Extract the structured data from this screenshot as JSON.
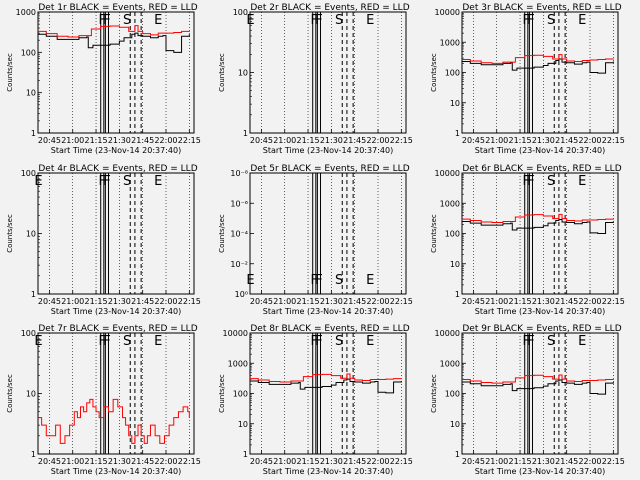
{
  "figure": {
    "background": "#f2f2f2",
    "events_color": "#000000",
    "lld_color": "#ff0000",
    "x_tick_labels": [
      "20:45",
      "21:00",
      "21:15",
      "21:30",
      "21:45",
      "22:00",
      "22:15"
    ],
    "x_label": "Start Time (23-Nov-14 20:37:40)",
    "y_label": "Counts/sec"
  },
  "chart_data": [
    {
      "type": "line",
      "title": "Det 1r BLACK = Events, RED = LLD",
      "yscale": "log",
      "yticks": [
        "1",
        "10",
        "100",
        "1000"
      ],
      "series": [
        {
          "name": "Events",
          "color": "#000000",
          "x": [
            "20:37",
            "20:43",
            "20:50",
            "20:57",
            "21:04",
            "21:09",
            "21:10",
            "21:12",
            "21:13",
            "21:24",
            "21:27",
            "21:30",
            "21:33",
            "21:36",
            "21:38",
            "21:40",
            "21:42",
            "21:45",
            "21:50",
            "21:55",
            "21:58",
            "22:00",
            "22:05",
            "22:10",
            "22:15"
          ],
          "y": [
            280,
            250,
            210,
            210,
            230,
            240,
            130,
            130,
            150,
            160,
            160,
            190,
            230,
            230,
            280,
            300,
            260,
            250,
            230,
            250,
            260,
            110,
            100,
            250,
            280
          ]
        },
        {
          "name": "LLD",
          "color": "#ff0000",
          "x": [
            "20:37",
            "20:43",
            "20:50",
            "20:57",
            "21:04",
            "21:12",
            "21:18",
            "21:24",
            "21:30",
            "21:36",
            "21:40",
            "21:42",
            "21:45",
            "21:50",
            "21:55",
            "22:00",
            "22:05",
            "22:10",
            "22:15"
          ],
          "y": [
            330,
            290,
            250,
            240,
            260,
            380,
            440,
            450,
            420,
            330,
            460,
            330,
            290,
            270,
            300,
            300,
            310,
            330,
            340
          ]
        }
      ],
      "annotations": [
        {
          "text": "F",
          "x": "21:19"
        },
        {
          "text": "F",
          "x": "21:22"
        },
        {
          "text": "S",
          "x": "21:35"
        },
        {
          "text": "E",
          "x": "21:55"
        }
      ]
    },
    {
      "type": "line",
      "title": "Det 2r BLACK = Events, RED = LLD",
      "yscale": "log",
      "yticks": [
        "1",
        "10",
        "100"
      ],
      "series": [],
      "annotations": [
        {
          "text": "E",
          "x": "20:38"
        },
        {
          "text": "F",
          "x": "21:19"
        },
        {
          "text": "F",
          "x": "21:22"
        },
        {
          "text": "S",
          "x": "21:35"
        },
        {
          "text": "E",
          "x": "21:55"
        }
      ]
    },
    {
      "type": "line",
      "title": "Det 3r BLACK = Events, RED = LLD",
      "yscale": "log",
      "yticks": [
        "1",
        "10",
        "100",
        "1000",
        "10000"
      ],
      "series": [
        {
          "name": "Events",
          "color": "#000000",
          "x": [
            "20:37",
            "20:43",
            "20:50",
            "20:57",
            "21:04",
            "21:09",
            "21:10",
            "21:12",
            "21:13",
            "21:24",
            "21:27",
            "21:30",
            "21:33",
            "21:36",
            "21:38",
            "21:40",
            "21:42",
            "21:45",
            "21:50",
            "21:55",
            "21:58",
            "22:00",
            "22:05",
            "22:10",
            "22:15"
          ],
          "y": [
            230,
            200,
            180,
            180,
            200,
            210,
            120,
            120,
            140,
            150,
            150,
            170,
            200,
            200,
            250,
            280,
            220,
            210,
            190,
            210,
            220,
            100,
            95,
            210,
            230
          ]
        },
        {
          "name": "LLD",
          "color": "#ff0000",
          "x": [
            "20:37",
            "20:43",
            "20:50",
            "20:57",
            "21:04",
            "21:12",
            "21:18",
            "21:24",
            "21:30",
            "21:36",
            "21:40",
            "21:42",
            "21:45",
            "21:50",
            "21:55",
            "22:00",
            "22:05",
            "22:10",
            "22:15"
          ],
          "y": [
            270,
            240,
            210,
            200,
            220,
            310,
            360,
            370,
            340,
            280,
            390,
            280,
            240,
            230,
            250,
            260,
            270,
            280,
            290
          ]
        }
      ],
      "annotations": [
        {
          "text": "F",
          "x": "21:19"
        },
        {
          "text": "F",
          "x": "21:22"
        },
        {
          "text": "S",
          "x": "21:35"
        },
        {
          "text": "E",
          "x": "21:55"
        }
      ]
    },
    {
      "type": "line",
      "title": "Det 4r BLACK = Events, RED = LLD",
      "yscale": "log",
      "yticks": [
        "1",
        "10",
        "100"
      ],
      "series": [],
      "annotations": [
        {
          "text": "E",
          "x": "20:38"
        },
        {
          "text": "F",
          "x": "21:19"
        },
        {
          "text": "F",
          "x": "21:22"
        },
        {
          "text": "S",
          "x": "21:35"
        },
        {
          "text": "E",
          "x": "21:55"
        }
      ]
    },
    {
      "type": "line",
      "title": "Det 5r BLACK = Events, RED = LLD",
      "yscale": "log",
      "yticks": [
        "10⁰",
        "10⁻²",
        "10⁻⁴",
        "10⁻⁶",
        "10⁻⁸"
      ],
      "series": [],
      "annotations": [
        {
          "text": "E",
          "x": "20:38"
        },
        {
          "text": "F",
          "x": "21:19"
        },
        {
          "text": "F",
          "x": "21:22"
        },
        {
          "text": "S",
          "x": "21:35"
        },
        {
          "text": "E",
          "x": "21:55"
        }
      ]
    },
    {
      "type": "line",
      "title": "Det 6r BLACK = Events, RED = LLD",
      "yscale": "log",
      "yticks": [
        "1",
        "10",
        "100",
        "1000",
        "10000"
      ],
      "series": [
        {
          "name": "Events",
          "color": "#000000",
          "x": [
            "20:37",
            "20:43",
            "20:50",
            "20:57",
            "21:04",
            "21:09",
            "21:10",
            "21:12",
            "21:13",
            "21:24",
            "21:27",
            "21:30",
            "21:33",
            "21:36",
            "21:38",
            "21:40",
            "21:42",
            "21:45",
            "21:50",
            "21:55",
            "21:58",
            "22:00",
            "22:05",
            "22:10",
            "22:15"
          ],
          "y": [
            250,
            220,
            190,
            190,
            210,
            220,
            130,
            130,
            150,
            160,
            160,
            180,
            220,
            220,
            270,
            290,
            240,
            230,
            210,
            230,
            240,
            105,
            100,
            230,
            250
          ]
        },
        {
          "name": "LLD",
          "color": "#ff0000",
          "x": [
            "20:37",
            "20:43",
            "20:50",
            "20:57",
            "21:04",
            "21:12",
            "21:18",
            "21:24",
            "21:30",
            "21:36",
            "21:40",
            "21:42",
            "21:45",
            "21:50",
            "21:55",
            "22:00",
            "22:05",
            "22:10",
            "22:15"
          ],
          "y": [
            300,
            270,
            240,
            230,
            250,
            350,
            410,
            420,
            380,
            310,
            430,
            310,
            270,
            260,
            280,
            280,
            290,
            300,
            310
          ]
        }
      ],
      "annotations": [
        {
          "text": "F",
          "x": "21:19"
        },
        {
          "text": "F",
          "x": "21:22"
        },
        {
          "text": "S",
          "x": "21:35"
        },
        {
          "text": "E",
          "x": "21:55"
        }
      ]
    },
    {
      "type": "line",
      "title": "Det 7r BLACK = Events, RED = LLD",
      "yscale": "log",
      "yticks": [
        "1",
        "10",
        "100"
      ],
      "series": [
        {
          "name": "LLD",
          "color": "#ff0000",
          "x": [
            "20:37",
            "20:40",
            "20:43",
            "20:46",
            "20:49",
            "20:52",
            "20:55",
            "20:58",
            "21:01",
            "21:03",
            "21:05",
            "21:07",
            "21:09",
            "21:11",
            "21:13",
            "21:15",
            "21:17",
            "21:20",
            "21:23",
            "21:26",
            "21:29",
            "21:32",
            "21:34",
            "21:36",
            "21:38",
            "21:40",
            "21:42",
            "21:44",
            "21:46",
            "21:48",
            "21:50",
            "21:53",
            "21:56",
            "21:59",
            "22:02",
            "22:05",
            "22:08",
            "22:11",
            "22:14",
            "22:15"
          ],
          "y": [
            4,
            3,
            2,
            2,
            3,
            1.5,
            2,
            3,
            5,
            4,
            6,
            5,
            7,
            8,
            6,
            5,
            4,
            6,
            5,
            8,
            6,
            4,
            3,
            2,
            1.5,
            2,
            3,
            2,
            1.5,
            2,
            3,
            2,
            1.5,
            2,
            3,
            4,
            5,
            6,
            5,
            4
          ]
        }
      ],
      "annotations": [
        {
          "text": "E",
          "x": "20:38"
        },
        {
          "text": "F",
          "x": "21:19"
        },
        {
          "text": "F",
          "x": "21:22"
        },
        {
          "text": "S",
          "x": "21:35"
        },
        {
          "text": "E",
          "x": "21:55"
        }
      ]
    },
    {
      "type": "line",
      "title": "Det 8r BLACK = Events, RED = LLD",
      "yscale": "log",
      "yticks": [
        "1",
        "10",
        "100",
        "1000",
        "10000"
      ],
      "series": [
        {
          "name": "Events",
          "color": "#000000",
          "x": [
            "20:37",
            "20:43",
            "20:50",
            "20:57",
            "21:04",
            "21:09",
            "21:10",
            "21:12",
            "21:13",
            "21:24",
            "21:27",
            "21:30",
            "21:33",
            "21:36",
            "21:38",
            "21:40",
            "21:42",
            "21:45",
            "21:50",
            "21:55",
            "21:58",
            "22:00",
            "22:05",
            "22:10",
            "22:15"
          ],
          "y": [
            260,
            230,
            200,
            200,
            220,
            230,
            140,
            140,
            160,
            170,
            170,
            190,
            230,
            230,
            280,
            300,
            250,
            240,
            220,
            240,
            250,
            110,
            105,
            240,
            260
          ]
        },
        {
          "name": "LLD",
          "color": "#ff0000",
          "x": [
            "20:37",
            "20:43",
            "20:50",
            "20:57",
            "21:04",
            "21:12",
            "21:18",
            "21:24",
            "21:30",
            "21:36",
            "21:40",
            "21:42",
            "21:45",
            "21:50",
            "21:55",
            "22:00",
            "22:05",
            "22:10",
            "22:15"
          ],
          "y": [
            310,
            280,
            250,
            240,
            260,
            360,
            420,
            430,
            390,
            320,
            440,
            320,
            280,
            270,
            290,
            290,
            300,
            310,
            320
          ]
        }
      ],
      "annotations": [
        {
          "text": "F",
          "x": "21:19"
        },
        {
          "text": "F",
          "x": "21:22"
        },
        {
          "text": "S",
          "x": "21:35"
        },
        {
          "text": "E",
          "x": "21:55"
        }
      ]
    },
    {
      "type": "line",
      "title": "Det 9r BLACK = Events, RED = LLD",
      "yscale": "log",
      "yticks": [
        "1",
        "10",
        "100",
        "1000",
        "10000"
      ],
      "series": [
        {
          "name": "Events",
          "color": "#000000",
          "x": [
            "20:37",
            "20:43",
            "20:50",
            "20:57",
            "21:04",
            "21:09",
            "21:10",
            "21:12",
            "21:13",
            "21:24",
            "21:27",
            "21:30",
            "21:33",
            "21:36",
            "21:38",
            "21:40",
            "21:42",
            "21:45",
            "21:50",
            "21:55",
            "21:58",
            "22:00",
            "22:05",
            "22:10",
            "22:15"
          ],
          "y": [
            240,
            210,
            180,
            180,
            200,
            210,
            125,
            125,
            145,
            155,
            155,
            175,
            210,
            210,
            260,
            280,
            230,
            220,
            200,
            220,
            230,
            100,
            95,
            220,
            240
          ]
        },
        {
          "name": "LLD",
          "color": "#ff0000",
          "x": [
            "20:37",
            "20:43",
            "20:50",
            "20:57",
            "21:04",
            "21:12",
            "21:18",
            "21:24",
            "21:30",
            "21:36",
            "21:40",
            "21:42",
            "21:45",
            "21:50",
            "21:55",
            "22:00",
            "22:05",
            "22:10",
            "22:15"
          ],
          "y": [
            290,
            260,
            230,
            220,
            240,
            330,
            390,
            400,
            360,
            300,
            410,
            300,
            260,
            250,
            270,
            270,
            280,
            290,
            300
          ]
        }
      ],
      "annotations": [
        {
          "text": "F",
          "x": "21:19"
        },
        {
          "text": "F",
          "x": "21:22"
        },
        {
          "text": "S",
          "x": "21:35"
        },
        {
          "text": "E",
          "x": "21:55"
        }
      ]
    }
  ]
}
